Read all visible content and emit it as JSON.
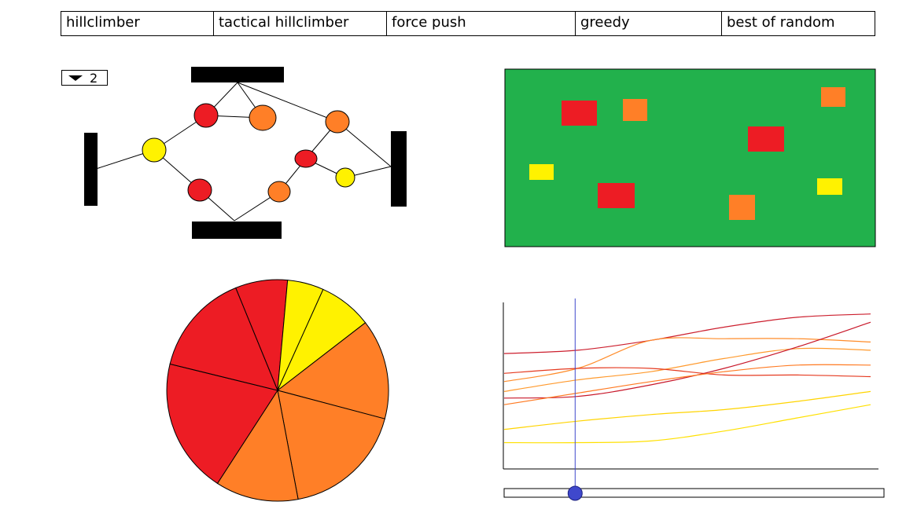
{
  "tabs": [
    {
      "label": "hillclimber"
    },
    {
      "label": "tactical hillclimber"
    },
    {
      "label": "force push"
    },
    {
      "label": "greedy"
    },
    {
      "label": "best of random"
    }
  ],
  "selector": {
    "value": "2"
  },
  "colors": {
    "red": "#ed1c24",
    "orange": "#ff7f27",
    "yellow": "#fff200",
    "green": "#22b14c",
    "slider_knob": "#3f48cc",
    "axis": "#000000"
  },
  "chart_data": [
    {
      "type": "pie",
      "slices": [
        {
          "color": "red",
          "percent": 7.6
        },
        {
          "color": "yellow",
          "percent": 5.3
        },
        {
          "color": "yellow",
          "percent": 7.8
        },
        {
          "color": "orange",
          "percent": 14.6
        },
        {
          "color": "orange",
          "percent": 17.9
        },
        {
          "color": "orange",
          "percent": 12.1
        },
        {
          "color": "red",
          "percent": 19.7
        },
        {
          "color": "red",
          "percent": 15.0
        }
      ]
    },
    {
      "type": "line",
      "x": [
        0,
        0.2,
        0.4,
        0.6,
        0.8,
        1.0
      ],
      "series": [
        {
          "color": "#cc1f2e",
          "values": [
            0.69,
            0.71,
            0.77,
            0.85,
            0.91,
            0.93
          ]
        },
        {
          "color": "#ff8c2a",
          "values": [
            0.52,
            0.6,
            0.77,
            0.78,
            0.78,
            0.76
          ]
        },
        {
          "color": "#ff9a2e",
          "values": [
            0.46,
            0.53,
            0.58,
            0.66,
            0.72,
            0.71
          ]
        },
        {
          "color": "#e53a20",
          "values": [
            0.57,
            0.6,
            0.6,
            0.56,
            0.56,
            0.55
          ]
        },
        {
          "color": "#c8182a",
          "values": [
            0.42,
            0.43,
            0.5,
            0.6,
            0.73,
            0.88
          ]
        },
        {
          "color": "#ff7a22",
          "values": [
            0.38,
            0.45,
            0.52,
            0.58,
            0.62,
            0.62
          ]
        },
        {
          "color": "#ffd400",
          "values": [
            0.23,
            0.28,
            0.32,
            0.35,
            0.4,
            0.46
          ]
        },
        {
          "color": "#ffe000",
          "values": [
            0.15,
            0.15,
            0.16,
            0.22,
            0.3,
            0.38
          ]
        }
      ]
    }
  ],
  "timeline": {
    "position": 0.19
  }
}
